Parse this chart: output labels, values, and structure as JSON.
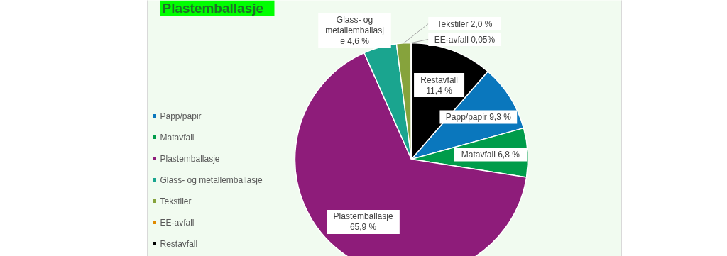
{
  "chart_data": {
    "type": "pie",
    "title": "Plastemballasje",
    "categories": [
      "Papp/papir",
      "Matavfall",
      "Plastemballasje",
      "Glass- og metallemballasje",
      "Tekstiler",
      "EE-avfall",
      "Restavfall"
    ],
    "values": [
      9.3,
      6.8,
      65.9,
      4.6,
      2.0,
      0.05,
      11.4
    ],
    "colors": [
      "#0a77bd",
      "#009c4a",
      "#8e1c7a",
      "#1aa58f",
      "#86a33c",
      "#e08a00",
      "#000000"
    ],
    "value_labels": [
      "Papp/papir 9,3 %",
      "Matavfall 6,8 %",
      "Plastemballasje\n65,9 %",
      "Glass- og\nmetallemballasj\ne 4,6 %",
      "Tekstiler 2,0 %",
      "EE-avfall 0,05%",
      "Restavfall\n11,4 %"
    ],
    "legend": "left"
  }
}
